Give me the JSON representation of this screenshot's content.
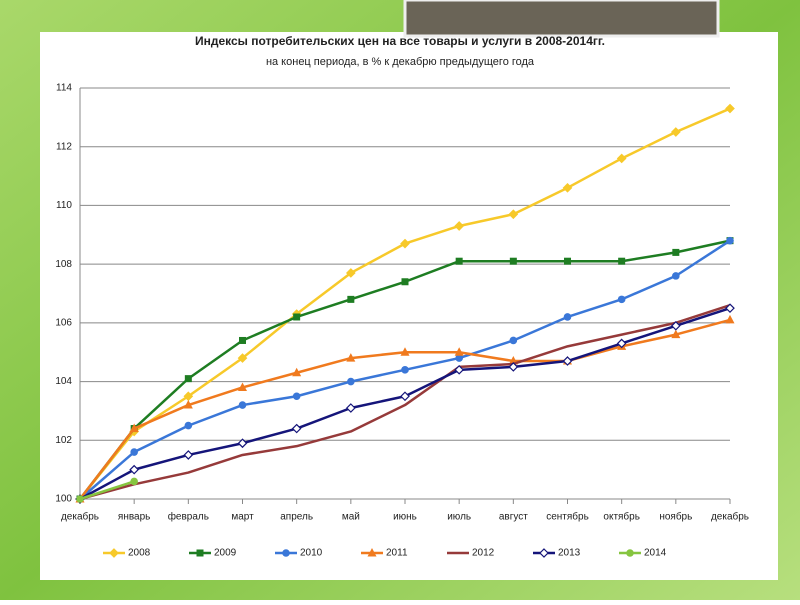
{
  "chart_data": {
    "type": "line",
    "title": "Индексы потребительских цен на все товары и услуги в 2008-2014гг.",
    "subtitle": "на конец периода, в % к декабрю предыдущего года",
    "categories": [
      "декабрь",
      "январь",
      "февраль",
      "март",
      "апрель",
      "май",
      "июнь",
      "июль",
      "август",
      "сентябрь",
      "октябрь",
      "ноябрь",
      "декабрь"
    ],
    "ylim": [
      100,
      114
    ],
    "yticks": [
      100,
      102,
      104,
      106,
      108,
      110,
      112,
      114
    ],
    "grid": true,
    "legend": "bottom",
    "series": [
      {
        "name": "2008",
        "color": "#f7c92a",
        "marker": "diamond",
        "values": [
          100,
          102.3,
          103.5,
          104.8,
          106.3,
          107.7,
          108.7,
          109.3,
          109.7,
          110.6,
          111.6,
          112.5,
          113.3
        ]
      },
      {
        "name": "2009",
        "color": "#1e7d22",
        "marker": "square",
        "values": [
          100,
          102.4,
          104.1,
          105.4,
          106.2,
          106.8,
          107.4,
          108.1,
          108.1,
          108.1,
          108.1,
          108.4,
          108.8
        ]
      },
      {
        "name": "2010",
        "color": "#3a77d8",
        "marker": "circle",
        "values": [
          100,
          101.6,
          102.5,
          103.2,
          103.5,
          104.0,
          104.4,
          104.8,
          105.4,
          106.2,
          106.8,
          107.6,
          108.8
        ]
      },
      {
        "name": "2011",
        "color": "#f07a1e",
        "marker": "triangle",
        "values": [
          100,
          102.4,
          103.2,
          103.8,
          104.3,
          104.8,
          105.0,
          105.0,
          104.7,
          104.7,
          105.2,
          105.6,
          106.1
        ]
      },
      {
        "name": "2012",
        "color": "#963a3a",
        "marker": "none",
        "values": [
          100,
          100.5,
          100.9,
          101.5,
          101.8,
          102.3,
          103.2,
          104.5,
          104.6,
          105.2,
          105.6,
          106.0,
          106.6
        ]
      },
      {
        "name": "2013",
        "color": "#15157a",
        "marker": "open-diamond",
        "values": [
          100,
          101.0,
          101.5,
          101.9,
          102.4,
          103.1,
          103.5,
          104.4,
          104.5,
          104.7,
          105.3,
          105.9,
          106.5
        ]
      },
      {
        "name": "2014",
        "color": "#86c540",
        "marker": "circle",
        "values": [
          100,
          100.6,
          null,
          null,
          null,
          null,
          null,
          null,
          null,
          null,
          null,
          null,
          null
        ]
      }
    ]
  }
}
